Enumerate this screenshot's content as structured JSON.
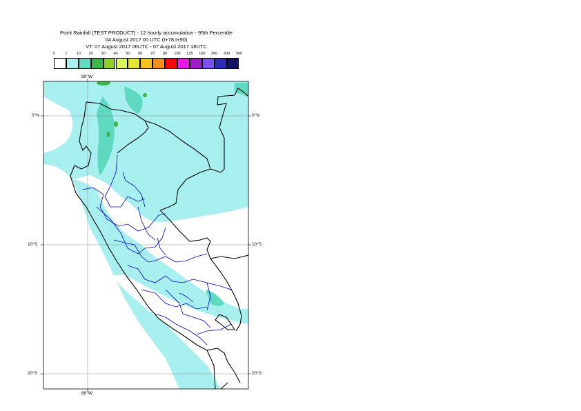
{
  "title": {
    "line1": "Point Rainfall (TEST PRODUCT) - 12 hourly accumulation - 95th Percentile",
    "line2": "04 August 2017 00 UTC (t+78,t+90)",
    "line3": "VT: 07 August 2017 06UTC - 07 August 2017 18UTC"
  },
  "legend": {
    "thresholds": [
      "0",
      "1",
      "10",
      "20",
      "30",
      "40",
      "50",
      "60",
      "70",
      "80",
      "100",
      "125",
      "150",
      "200",
      "300",
      "500"
    ],
    "colors": [
      "#ffffff",
      "#a8f0f0",
      "#5fd9c0",
      "#3cb54a",
      "#8fd12a",
      "#d8f55a",
      "#e6e62e",
      "#f5c021",
      "#f58c1e",
      "#f50a0a",
      "#e619e6",
      "#a01ec8",
      "#7d50ef",
      "#2d2db4",
      "#141464"
    ]
  },
  "axes": {
    "lon_top": "80°W",
    "lon_bottom": "80°W",
    "lat_left": [
      "0°N",
      "10°S",
      "20°S"
    ],
    "lat_right": [
      "0°N",
      "10°S",
      "20°S"
    ]
  },
  "map": {
    "land_color": "#ffffff",
    "rain_light_color": "#a8f0f0",
    "rain_moderate_color": "#5fd9c0",
    "rain_heavy_color": "#3cb54a",
    "coast_color": "#000000",
    "region_border_color": "#0000cc"
  }
}
